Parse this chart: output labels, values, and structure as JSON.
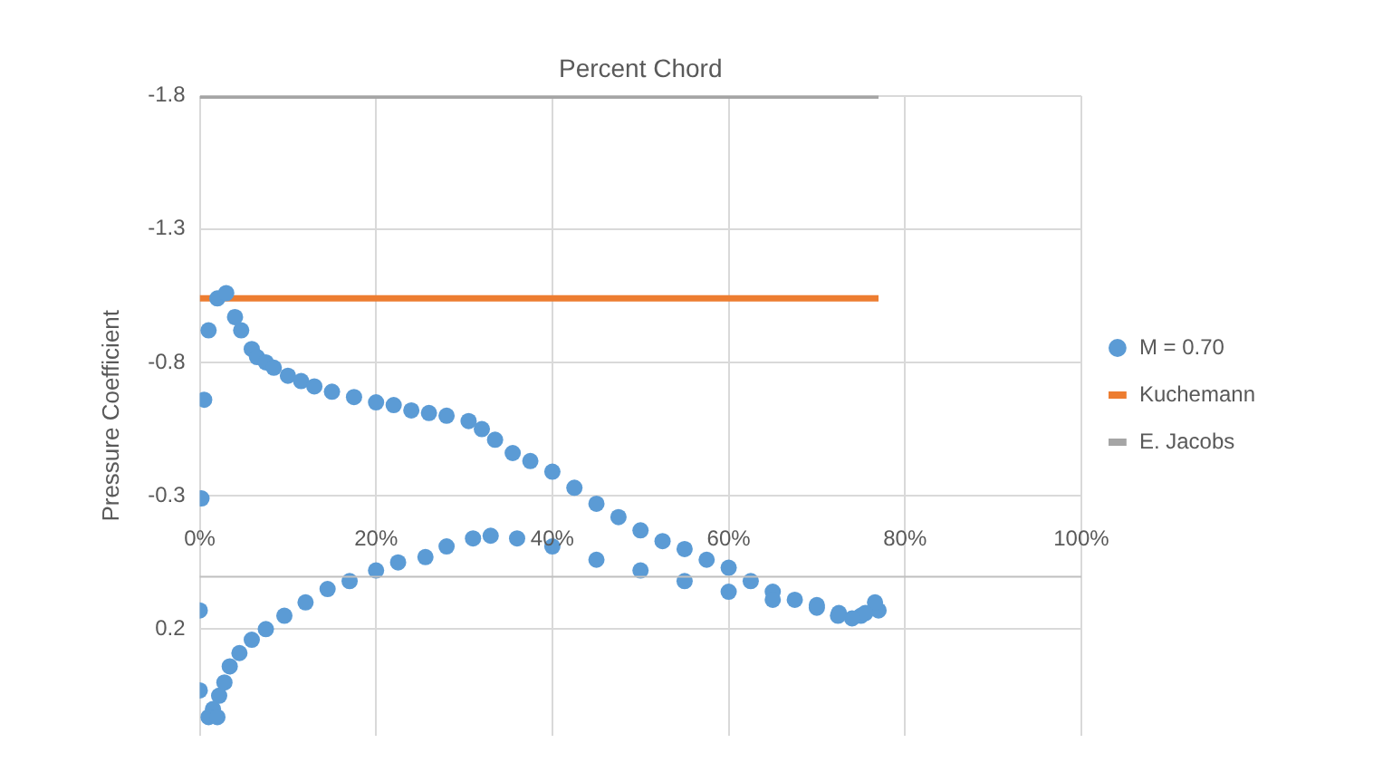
{
  "chart_data": {
    "type": "scatter",
    "xlabel": "Percent Chord",
    "ylabel": "Pressure Coefficient",
    "xlim": [
      0,
      100
    ],
    "xticks": [
      {
        "value": 0,
        "label": "0%"
      },
      {
        "value": 20,
        "label": "20%"
      },
      {
        "value": 40,
        "label": "40%"
      },
      {
        "value": 60,
        "label": "60%"
      },
      {
        "value": 80,
        "label": "80%"
      },
      {
        "value": 100,
        "label": "100%"
      }
    ],
    "ylim": [
      0.6,
      -1.8
    ],
    "yticks": [
      -1.8,
      -1.3,
      -0.8,
      -0.3,
      0.2
    ],
    "grid": true,
    "legend": "right",
    "marker": "circle",
    "series": [
      {
        "name": "M = 0.70",
        "color": "#5b9bd5",
        "x": [
          0,
          0,
          0.2,
          0.5,
          1,
          2,
          3,
          4,
          4.7,
          5.9,
          6.5,
          7.5,
          8.4,
          10,
          11.5,
          13,
          15,
          17.5,
          20,
          22,
          24,
          26,
          28,
          30.5,
          32,
          33.5,
          35.5,
          37.5,
          40,
          42.5,
          45,
          47.5,
          50,
          52.5,
          55,
          57.5,
          60,
          62.5,
          65,
          67.5,
          70,
          72.5,
          75,
          77,
          76.6,
          75.5,
          74,
          72.4,
          70,
          65,
          60,
          55,
          50,
          45,
          40,
          36,
          33,
          31,
          28,
          25.6,
          22.5,
          20,
          17,
          14.5,
          12,
          9.6,
          7.5,
          5.9,
          4.5,
          3.4,
          2.8,
          2.2,
          1.5,
          1,
          2
        ],
        "values": [
          0.13,
          0.43,
          -0.29,
          -0.66,
          -0.92,
          -1.04,
          -1.06,
          -0.97,
          -0.92,
          -0.85,
          -0.82,
          -0.8,
          -0.78,
          -0.75,
          -0.73,
          -0.71,
          -0.69,
          -0.67,
          -0.65,
          -0.64,
          -0.62,
          -0.61,
          -0.6,
          -0.58,
          -0.55,
          -0.51,
          -0.46,
          -0.43,
          -0.39,
          -0.33,
          -0.27,
          -0.22,
          -0.17,
          -0.13,
          -0.1,
          -0.06,
          -0.03,
          0.02,
          0.06,
          0.09,
          0.12,
          0.14,
          0.15,
          0.13,
          0.1,
          0.14,
          0.16,
          0.15,
          0.11,
          0.09,
          0.06,
          0.02,
          -0.02,
          -0.06,
          -0.11,
          -0.14,
          -0.15,
          -0.14,
          -0.11,
          -0.07,
          -0.05,
          -0.02,
          0.02,
          0.05,
          0.1,
          0.15,
          0.2,
          0.24,
          0.29,
          0.34,
          0.4,
          0.45,
          0.5,
          0.53,
          0.53
        ]
      },
      {
        "name": "Kuchemann",
        "type": "line",
        "marker": "none",
        "color": "#ed7d31",
        "x": [
          0,
          77
        ],
        "values": [
          -1.04,
          -1.04
        ]
      },
      {
        "name": "E. Jacobs",
        "type": "line",
        "marker": "none",
        "color": "#a5a5a5",
        "x": [
          0,
          77
        ],
        "values": [
          -1.8,
          -1.8
        ]
      }
    ]
  }
}
